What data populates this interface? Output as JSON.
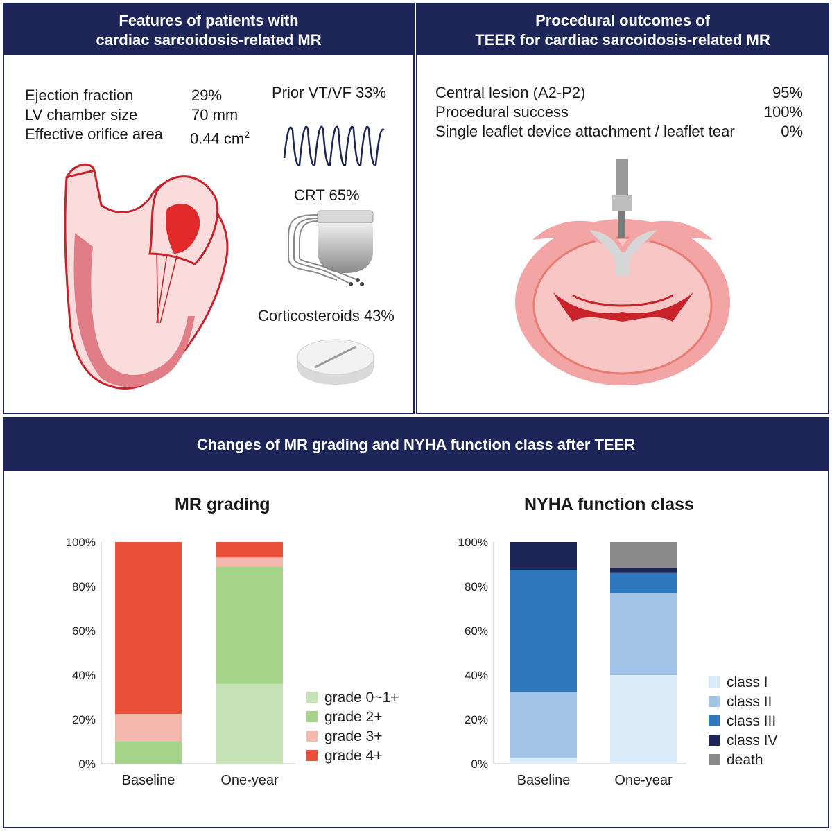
{
  "panel1": {
    "title_line1": "Features of patients with",
    "title_line2": "cardiac sarcoidosis-related MR",
    "stats": [
      {
        "label": "Ejection fraction",
        "value": "29%"
      },
      {
        "label": "LV chamber size",
        "value": "70 mm"
      },
      {
        "label": "Effective orifice area",
        "value": "0.44 cm",
        "sup": "2"
      }
    ],
    "vtvf_label": "Prior VT/VF 33%",
    "crt_label": "CRT 65%",
    "steroid_label": "Corticosteroids 43%"
  },
  "panel2": {
    "title_line1": "Procedural outcomes of",
    "title_line2": "TEER for cardiac sarcoidosis-related MR",
    "rows": [
      {
        "label": "Central lesion (A2-P2)",
        "value": "95%"
      },
      {
        "label": "Procedural success",
        "value": "100%"
      },
      {
        "label": "Single leaflet device attachment / leaflet tear",
        "value": "0%"
      }
    ]
  },
  "panel3": {
    "title": "Changes of MR grading and NYHA function class after TEER"
  },
  "colors": {
    "navy": "#1e2559",
    "grade01": "#c6e3b8",
    "grade2": "#a6d38a",
    "grade3": "#f4b8ae",
    "grade4": "#e8503a",
    "class1": "#dbebf7",
    "class2": "#a0c3e6",
    "class3": "#2e77bd",
    "class4": "#1e2559",
    "death": "#898989"
  },
  "chart_data": [
    {
      "type": "bar",
      "stacked": true,
      "title": "MR grading",
      "categories": [
        "Baseline",
        "One-year"
      ],
      "yticks": [
        "0%",
        "20%",
        "40%",
        "60%",
        "80%",
        "100%"
      ],
      "ylim": [
        0,
        100
      ],
      "legend_position": "right",
      "series": [
        {
          "name": "grade 0~1+",
          "values": [
            0,
            36
          ]
        },
        {
          "name": "grade 2+",
          "values": [
            10,
            53
          ]
        },
        {
          "name": "grade 3+",
          "values": [
            12.5,
            4
          ]
        },
        {
          "name": "grade 4+",
          "values": [
            77.5,
            7
          ]
        }
      ]
    },
    {
      "type": "bar",
      "stacked": true,
      "title": "NYHA function class",
      "categories": [
        "Baseline",
        "One-year"
      ],
      "yticks": [
        "0%",
        "20%",
        "40%",
        "60%",
        "80%",
        "100%"
      ],
      "ylim": [
        0,
        100
      ],
      "legend_position": "right",
      "series": [
        {
          "name": "class I",
          "values": [
            2.5,
            40
          ]
        },
        {
          "name": "class II",
          "values": [
            30,
            37
          ]
        },
        {
          "name": "class III",
          "values": [
            55,
            9
          ]
        },
        {
          "name": "class IV",
          "values": [
            12.5,
            2.5
          ]
        },
        {
          "name": "death",
          "values": [
            0,
            11.5
          ]
        }
      ]
    }
  ]
}
